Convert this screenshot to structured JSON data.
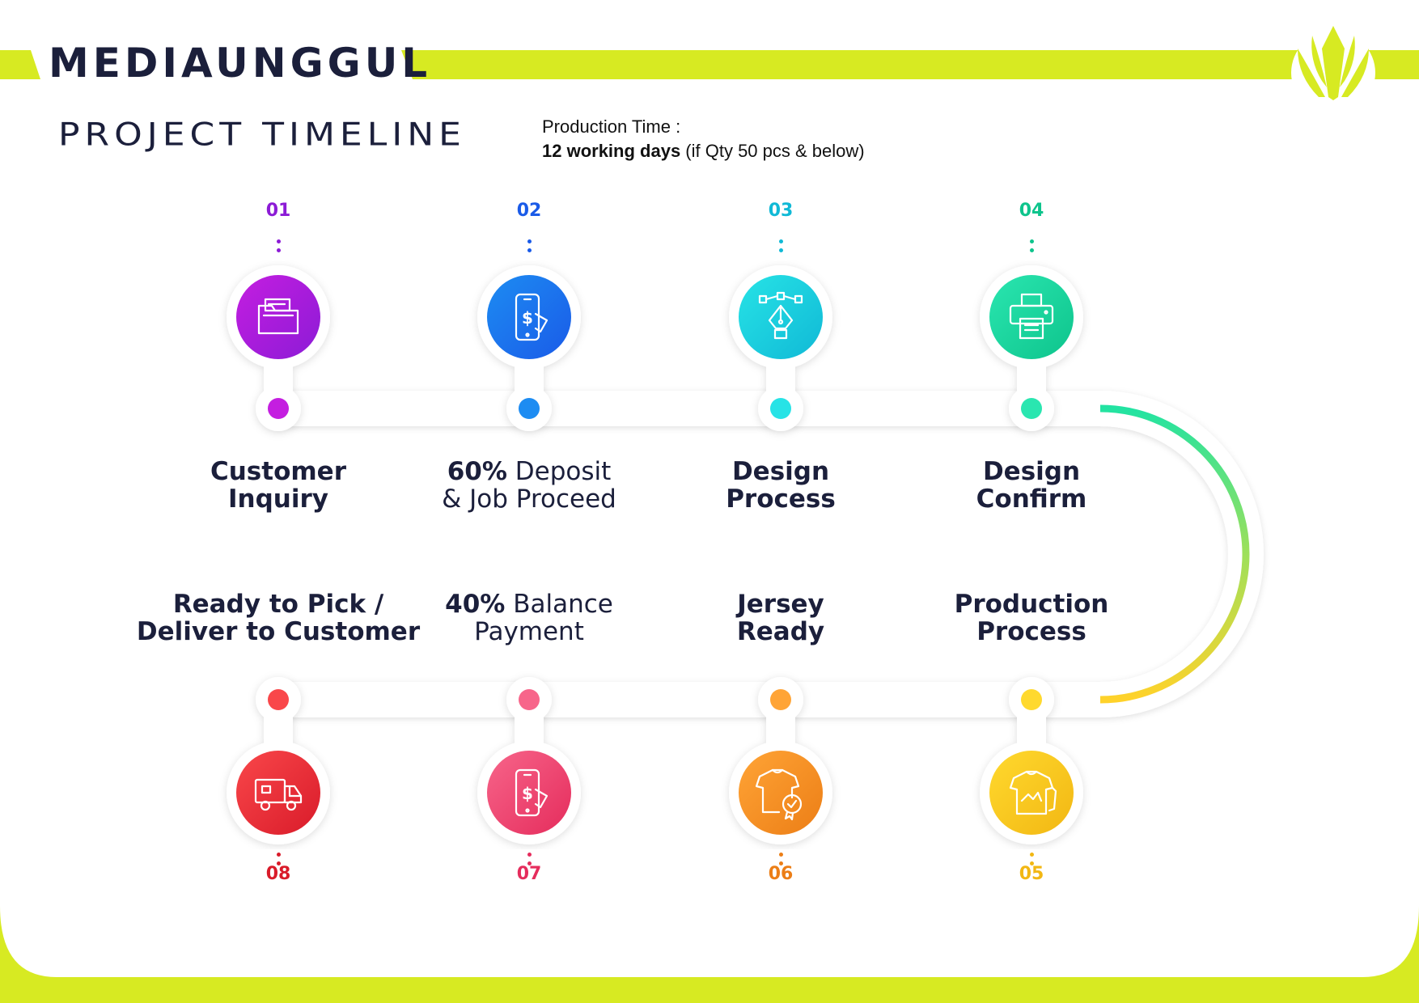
{
  "brand": {
    "name": "MEDIAUNGGUL",
    "logo_icon": "leaf-crown-logo-icon"
  },
  "header": {
    "title": "PROJECT TIMELINE",
    "production_time_label": "Production Time :",
    "production_days": "12 working days",
    "production_note": " (if Qty 50 pcs & below)"
  },
  "colors": {
    "accent_lime": "#d7ea22",
    "text_dark": "#1b1f3b"
  },
  "steps": [
    {
      "number": "01",
      "line1_bold": "Customer",
      "line1_rest": "",
      "line2_bold": "Inquiry",
      "line2_rest": "",
      "icon": "folder-document-icon",
      "color_a": "#c41ee0",
      "color_b": "#8c1bd6"
    },
    {
      "number": "02",
      "line1_bold": "60%",
      "line1_rest": " Deposit",
      "line2_bold": "",
      "line2_rest": "& Job Proceed",
      "icon": "mobile-payment-icon",
      "color_a": "#1d8cf2",
      "color_b": "#1a5be8"
    },
    {
      "number": "03",
      "line1_bold": "Design",
      "line1_rest": "",
      "line2_bold": "Process",
      "line2_rest": "",
      "icon": "pen-tool-icon",
      "color_a": "#27e3e6",
      "color_b": "#10b9d6"
    },
    {
      "number": "04",
      "line1_bold": "Design",
      "line1_rest": "",
      "line2_bold": "Confirm",
      "line2_rest": "",
      "icon": "printer-icon",
      "color_a": "#2ae6b0",
      "color_b": "#0ec48c"
    },
    {
      "number": "05",
      "line1_bold": "Production",
      "line1_rest": "",
      "line2_bold": "Process",
      "line2_rest": "",
      "icon": "shirt-stack-icon",
      "color_a": "#ffd92e",
      "color_b": "#f2b713"
    },
    {
      "number": "06",
      "line1_bold": "Jersey",
      "line1_rest": "",
      "line2_bold": "Ready",
      "line2_rest": "",
      "icon": "shirt-badge-icon",
      "color_a": "#ffa436",
      "color_b": "#ec7e16"
    },
    {
      "number": "07",
      "line1_bold": "40%",
      "line1_rest": " Balance",
      "line2_bold": "",
      "line2_rest": "Payment",
      "icon": "mobile-payment-icon",
      "color_a": "#f7658a",
      "color_b": "#e52c5c"
    },
    {
      "number": "08",
      "line1_bold": "Ready to Pick /",
      "line1_rest": "",
      "line2_bold": "Deliver to Customer",
      "line2_rest": "",
      "icon": "delivery-truck-icon",
      "color_a": "#f9474a",
      "color_b": "#d91b2a"
    }
  ]
}
